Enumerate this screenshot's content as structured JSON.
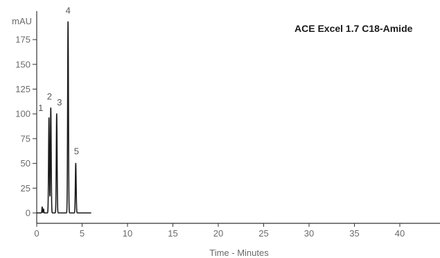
{
  "chart_data": {
    "type": "line",
    "title": "ACE Excel 1.7 C18-Amide",
    "xlabel": "Time - Minutes",
    "ylabel": "mAU",
    "xlim": [
      0,
      44
    ],
    "ylim": [
      0,
      195
    ],
    "x_ticks": [
      0,
      5,
      10,
      15,
      20,
      25,
      30,
      35,
      40
    ],
    "y_ticks": [
      0,
      25,
      50,
      75,
      100,
      125,
      150,
      175
    ],
    "grid": false,
    "trace_end": 6.0,
    "baseline": 0,
    "peaks": [
      {
        "label": "1",
        "time": 1.35,
        "height": 96
      },
      {
        "label": "2",
        "time": 1.55,
        "height": 106
      },
      {
        "label": "3",
        "time": 2.2,
        "height": 100
      },
      {
        "label": "4",
        "time": 3.45,
        "height": 193
      },
      {
        "label": "5",
        "time": 4.3,
        "height": 50
      }
    ],
    "colors": {
      "trace": "#1a1a1a",
      "axis": "#333333",
      "text": "#6a6a6a"
    }
  }
}
